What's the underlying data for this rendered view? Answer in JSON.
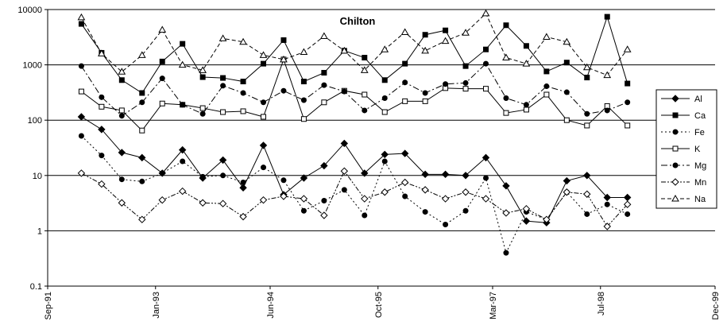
{
  "chart_data": {
    "type": "line",
    "title": "Chilton",
    "log_scale": true,
    "grid": true,
    "legend": "right",
    "x": [
      "1992-02",
      "1992-05",
      "1992-08",
      "1992-11",
      "1993-02",
      "1993-05",
      "1993-08",
      "1993-11",
      "1994-02",
      "1994-05",
      "1994-08",
      "1994-11",
      "1995-02",
      "1995-05",
      "1995-08",
      "1995-11",
      "1996-02",
      "1996-05",
      "1996-08",
      "1996-11",
      "1997-02",
      "1997-05",
      "1997-08",
      "1997-11",
      "1998-02",
      "1998-05",
      "1998-08",
      "1998-11"
    ],
    "xlim": [
      "1991-09",
      "1999-12"
    ],
    "xticks": [
      {
        "value": "1991-09",
        "label": "Sep-91"
      },
      {
        "value": "1993-01",
        "label": "Jan-93"
      },
      {
        "value": "1994-06",
        "label": "Jun-94"
      },
      {
        "value": "1995-10",
        "label": "Oct-95"
      },
      {
        "value": "1997-03",
        "label": "Mar-97"
      },
      {
        "value": "1998-07",
        "label": "Jul-98"
      },
      {
        "value": "1999-12",
        "label": "Dec-99"
      }
    ],
    "ylim": [
      0.1,
      10000
    ],
    "yticks": [
      10000,
      1000,
      100,
      10,
      1,
      0.1
    ],
    "series": [
      {
        "name": "Al",
        "color": "#000000",
        "marker": "diamond",
        "filled": true,
        "dash": "none",
        "values": [
          115,
          68,
          26,
          21,
          11,
          29,
          9,
          19,
          6,
          35,
          4.5,
          9,
          15,
          38,
          11,
          24,
          25,
          10.5,
          10.5,
          10,
          21,
          6.5,
          1.5,
          1.4,
          8,
          10,
          4,
          4
        ]
      },
      {
        "name": "Ca",
        "color": "#000000",
        "marker": "square",
        "filled": true,
        "dash": "none",
        "values": [
          5500,
          1650,
          530,
          310,
          1150,
          2400,
          600,
          580,
          500,
          1050,
          2800,
          500,
          720,
          1800,
          1350,
          530,
          1050,
          3500,
          4200,
          950,
          1900,
          5200,
          2200,
          760,
          1100,
          590,
          7400,
          460
        ]
      },
      {
        "name": "Fe",
        "color": "#000000",
        "marker": "circle",
        "filled": true,
        "dash": "2 3",
        "values": [
          52,
          23,
          8.5,
          7.8,
          11,
          18,
          9.5,
          10,
          7.5,
          14,
          8.2,
          2.3,
          3.5,
          5.5,
          1.9,
          18,
          4.2,
          2.2,
          1.3,
          2.3,
          9,
          0.4,
          2.2,
          1.6,
          5,
          2,
          3,
          2
        ]
      },
      {
        "name": "K",
        "color": "#000000",
        "marker": "square",
        "filled": false,
        "dash": "none",
        "values": [
          330,
          175,
          150,
          65,
          200,
          190,
          165,
          140,
          145,
          115,
          1250,
          105,
          210,
          340,
          290,
          140,
          220,
          220,
          380,
          370,
          370,
          135,
          155,
          290,
          100,
          80,
          180,
          80
        ]
      },
      {
        "name": "Mg",
        "color": "#000000",
        "marker": "circle",
        "filled": true,
        "dash": "8 3 2 3",
        "values": [
          950,
          260,
          120,
          210,
          570,
          190,
          130,
          420,
          310,
          210,
          340,
          230,
          430,
          330,
          150,
          250,
          480,
          310,
          450,
          470,
          1050,
          250,
          190,
          410,
          320,
          130,
          150,
          210
        ]
      },
      {
        "name": "Mn",
        "color": "#000000",
        "marker": "diamond",
        "filled": false,
        "dash": "6 2 2 2 2 2",
        "values": [
          11,
          7,
          3.2,
          1.6,
          3.6,
          5.2,
          3.2,
          3.1,
          1.8,
          3.6,
          4.2,
          3.8,
          1.9,
          12,
          3.8,
          5,
          7.5,
          5.5,
          3.8,
          5,
          3.8,
          2.1,
          2.5,
          1.6,
          5,
          4.6,
          1.2,
          3
        ]
      },
      {
        "name": "Na",
        "color": "#000000",
        "marker": "triangle",
        "filled": false,
        "dash": "5 3",
        "values": [
          7200,
          1600,
          750,
          1500,
          4300,
          1000,
          800,
          3000,
          2600,
          1500,
          1250,
          1700,
          3300,
          1800,
          800,
          1900,
          3900,
          1800,
          2700,
          3800,
          8500,
          1350,
          1050,
          3200,
          2600,
          900,
          650,
          1900
        ]
      }
    ]
  }
}
